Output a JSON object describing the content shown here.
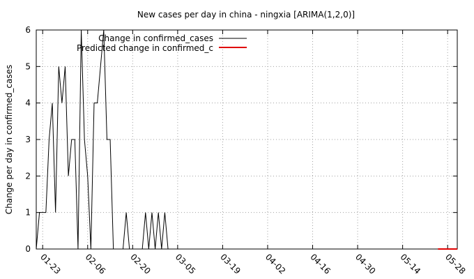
{
  "chart_data": {
    "type": "line",
    "title": "New cases per day in china - ningxia [ARIMA(1,2,0)]",
    "xlabel": "",
    "ylabel": "Change per day in confirmed_cases",
    "x_ticks": [
      "01-23",
      "02-06",
      "02-20",
      "03-05",
      "03-19",
      "04-02",
      "04-16",
      "04-30",
      "05-14",
      "05-28"
    ],
    "x_start": "01-21",
    "x_range_days": [
      0,
      131
    ],
    "ylim": [
      0,
      6
    ],
    "y_ticks": [
      "0",
      "1",
      "2",
      "3",
      "4",
      "5",
      "6"
    ],
    "grid": true,
    "legend_position": "top-left",
    "series": [
      {
        "name": "Change in confirmed_cases",
        "color": "#000000",
        "x": [
          "01-21",
          "01-22",
          "01-23",
          "01-24",
          "01-25",
          "01-26",
          "01-27",
          "01-28",
          "01-29",
          "01-30",
          "01-31",
          "02-01",
          "02-02",
          "02-03",
          "02-04",
          "02-05",
          "02-06",
          "02-07",
          "02-08",
          "02-09",
          "02-10",
          "02-11",
          "02-12",
          "02-13",
          "02-14",
          "02-15",
          "02-16",
          "02-17",
          "02-18",
          "02-19",
          "02-20",
          "02-21",
          "02-22",
          "02-23",
          "02-24",
          "02-25",
          "02-26",
          "02-27",
          "02-28",
          "02-29",
          "03-01",
          "03-02",
          "03-03",
          "03-04",
          "03-05"
        ],
        "values": [
          0,
          1,
          1,
          1,
          3,
          4,
          1,
          5,
          4,
          5,
          2,
          3,
          3,
          0,
          6,
          3,
          2,
          0,
          4,
          4,
          5,
          6,
          3,
          3,
          0,
          0,
          0,
          0,
          1,
          0,
          0,
          0,
          0,
          0,
          1,
          0,
          1,
          0,
          1,
          0,
          1,
          0,
          0,
          0,
          0
        ]
      },
      {
        "name": "Predicted change in confirmed_c",
        "color": "#e00000",
        "x": [
          "05-25",
          "05-26",
          "05-27",
          "05-28",
          "05-29",
          "05-30",
          "05-31"
        ],
        "values": [
          0,
          0,
          0,
          0,
          0,
          0,
          0
        ]
      }
    ]
  }
}
